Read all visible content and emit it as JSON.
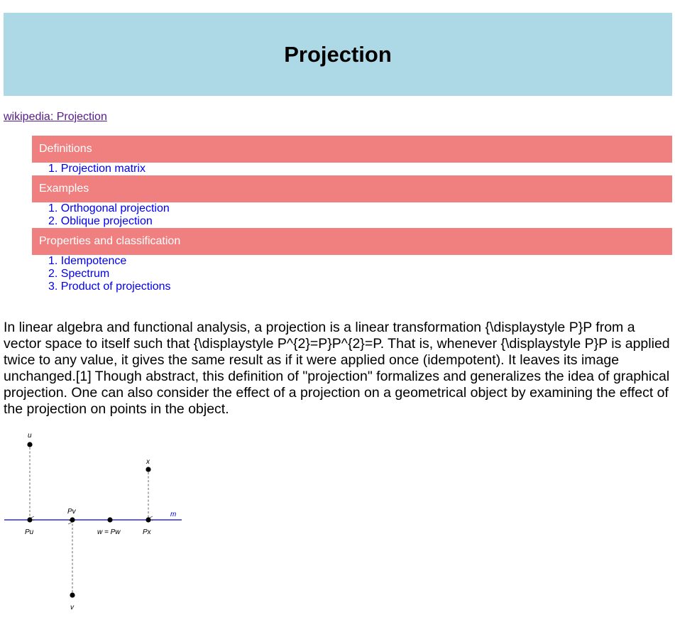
{
  "header": {
    "title": "Projection"
  },
  "source_link": {
    "label": "wikipedia: Projection"
  },
  "toc": {
    "sections": [
      {
        "title": "Definitions",
        "items": [
          "1. Projection matrix"
        ]
      },
      {
        "title": "Examples",
        "items": [
          "1. Orthogonal projection",
          "2. Oblique projection"
        ]
      },
      {
        "title": "Properties and classification",
        "items": [
          "1. Idempotence",
          "2. Spectrum",
          "3. Product of projections"
        ]
      }
    ]
  },
  "intro": {
    "text": "In linear algebra and functional analysis, a projection is a linear transformation {\\displaystyle P}P from a vector space to itself such that {\\displaystyle P^{2}=P}P^{2}=P. That is, whenever {\\displaystyle P}P is applied twice to any value, it gives the same result as if it were applied once (idempotent). It leaves its image unchanged.[1] Though abstract, this definition of \"projection\" formalizes and generalizes the idea of graphical projection. One can also consider the effect of a projection on a geometrical object by examining the effect of the projection on points in the object."
  },
  "diagram": {
    "line_label": "m",
    "line_color": "#0000cd",
    "point_labels": {
      "u": "u",
      "pu": "Pu",
      "pv": "Pv",
      "v": "v",
      "w": "w = Pw",
      "x": "x",
      "px": "Px"
    }
  }
}
